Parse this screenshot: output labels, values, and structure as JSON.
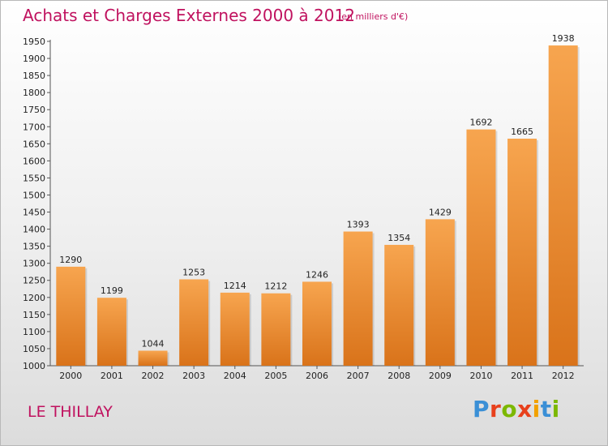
{
  "header": {
    "title": "Achats et Charges Externes 2000 à 2012",
    "subtitle": "(en milliers d'€)"
  },
  "footer": {
    "place": "LE THILLAY",
    "logo": "Proxiti"
  },
  "colors": {
    "title": "#c0125f",
    "bar_top": "#f7a54f",
    "bar_bottom": "#d9731a",
    "logo_letters": [
      "#3a8fd6",
      "#e8401c",
      "#7cb800",
      "#e8401c",
      "#f2a100",
      "#3a8fd6",
      "#7cb800"
    ]
  },
  "chart_data": {
    "type": "bar",
    "title": "Achats et Charges Externes 2000 à 2012",
    "subtitle": "(en milliers d'€)",
    "categories": [
      "2000",
      "2001",
      "2002",
      "2003",
      "2004",
      "2005",
      "2006",
      "2007",
      "2008",
      "2009",
      "2010",
      "2011",
      "2012"
    ],
    "values": [
      1290,
      1199,
      1044,
      1253,
      1214,
      1212,
      1246,
      1393,
      1354,
      1429,
      1692,
      1665,
      1938
    ],
    "ylim": [
      1000,
      1950
    ],
    "yticks": [
      1000,
      1050,
      1100,
      1150,
      1200,
      1250,
      1300,
      1350,
      1400,
      1450,
      1500,
      1550,
      1600,
      1650,
      1700,
      1750,
      1800,
      1850,
      1900,
      1950
    ],
    "grid": false,
    "legend": "none"
  }
}
